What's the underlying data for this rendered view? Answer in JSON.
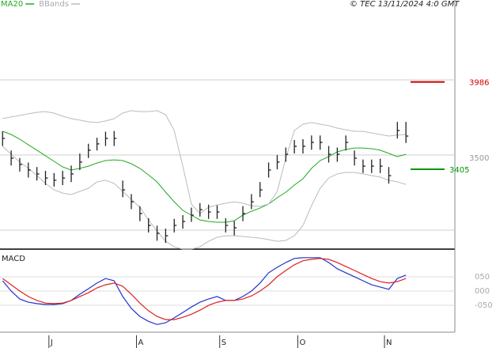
{
  "header": {
    "copyright": "© TEC 13/11/2024 4:0 GMT"
  },
  "chart_data": [
    {
      "type": "ohlc",
      "xlim": [
        -0.3,
        52.7
      ],
      "xticks": [
        {
          "value": 5.4,
          "label": "J"
        },
        {
          "value": 15.6,
          "label": "A"
        },
        {
          "value": 25.3,
          "label": "S"
        },
        {
          "value": 34.4,
          "label": "O"
        },
        {
          "value": 44.5,
          "label": "N"
        }
      ],
      "ylim": [
        2874,
        4531
      ],
      "yticks": [
        3500
      ],
      "gridlines": [
        3000,
        3500,
        4000
      ],
      "color": "#222222",
      "high": [
        3658,
        3530,
        3480,
        3450,
        3420,
        3395,
        3380,
        3395,
        3430,
        3510,
        3575,
        3615,
        3655,
        3660,
        3330,
        3240,
        3160,
        3080,
        3030,
        3010,
        3075,
        3100,
        3150,
        3180,
        3170,
        3165,
        3080,
        3060,
        3160,
        3240,
        3320,
        3450,
        3500,
        3550,
        3600,
        3605,
        3630,
        3630,
        3560,
        3550,
        3630,
        3530,
        3470,
        3470,
        3475,
        3420,
        3720,
        3720
      ],
      "low": [
        3560,
        3430,
        3390,
        3350,
        3330,
        3300,
        3290,
        3300,
        3320,
        3400,
        3480,
        3530,
        3560,
        3560,
        3220,
        3140,
        3060,
        2985,
        2930,
        2915,
        2985,
        3010,
        3055,
        3090,
        3075,
        3075,
        2985,
        2965,
        3060,
        3140,
        3220,
        3350,
        3405,
        3455,
        3510,
        3510,
        3535,
        3535,
        3450,
        3455,
        3530,
        3430,
        3380,
        3380,
        3380,
        3310,
        3610,
        3580
      ],
      "close": [
        3611,
        3479,
        3437,
        3400,
        3374,
        3347,
        3332,
        3347,
        3374,
        3453,
        3532,
        3574,
        3611,
        3611,
        3268,
        3189,
        3111,
        3032,
        2979,
        2963,
        3032,
        3058,
        3100,
        3137,
        3121,
        3121,
        3032,
        3016,
        3111,
        3189,
        3268,
        3400,
        3453,
        3505,
        3558,
        3558,
        3584,
        3584,
        3505,
        3505,
        3584,
        3479,
        3426,
        3426,
        3426,
        3363,
        3663,
        3626
      ],
      "series": [
        {
          "name": "MA20",
          "color": "#22aa22",
          "values": [
            3658,
            3637,
            3605,
            3568,
            3532,
            3495,
            3458,
            3421,
            3400,
            3411,
            3426,
            3447,
            3463,
            3468,
            3463,
            3442,
            3411,
            3368,
            3321,
            3253,
            3189,
            3132,
            3100,
            3068,
            3058,
            3053,
            3053,
            3063,
            3100,
            3126,
            3147,
            3174,
            3216,
            3253,
            3300,
            3342,
            3411,
            3463,
            3489,
            3521,
            3537,
            3547,
            3547,
            3542,
            3532,
            3511,
            3489,
            3505
          ]
        },
        {
          "name": "BBands",
          "color": "#bbbbbb",
          "values": [
            3742,
            3753,
            3763,
            3774,
            3784,
            3789,
            3779,
            3758,
            3742,
            3732,
            3721,
            3716,
            3726,
            3742,
            3779,
            3795,
            3789,
            3789,
            3795,
            3768,
            3663,
            3426,
            3174,
            3111,
            3153,
            3168,
            3179,
            3189,
            3179,
            3163,
            3158,
            3174,
            3258,
            3479,
            3663,
            3705,
            3716,
            3705,
            3695,
            3679,
            3668,
            3658,
            3658,
            3647,
            3637,
            3626,
            3632,
            3637
          ]
        },
        {
          "color": "#bbbbbb",
          "values": [
            3558,
            3505,
            3453,
            3411,
            3363,
            3311,
            3268,
            3247,
            3237,
            3258,
            3279,
            3321,
            3332,
            3311,
            3258,
            3205,
            3153,
            3068,
            2995,
            2926,
            2889,
            2874,
            2874,
            2889,
            2926,
            2953,
            2963,
            2963,
            2958,
            2953,
            2947,
            2937,
            2926,
            2932,
            2963,
            3032,
            3163,
            3279,
            3347,
            3374,
            3384,
            3384,
            3374,
            3363,
            3353,
            3332,
            3321,
            3305
          ]
        }
      ],
      "levels": [
        {
          "value": 3986,
          "color": "#cc0000"
        },
        {
          "value": 3405,
          "color": "#009900"
        }
      ]
    },
    {
      "type": "line",
      "title": "MACD",
      "xlim": [
        -0.3,
        52.7
      ],
      "ylim": [
        -144,
        144
      ],
      "yticks": [
        {
          "value": 50,
          "label": "050"
        },
        {
          "value": 0,
          "label": "000"
        },
        {
          "value": -50,
          "label": "-050"
        }
      ],
      "series": [
        {
          "color": "#2233cc",
          "values": [
            36,
            0,
            -28,
            -39,
            -44,
            -47,
            -47,
            -44,
            -33,
            -11,
            8,
            28,
            44,
            36,
            -19,
            -61,
            -89,
            -106,
            -117,
            -111,
            -94,
            -75,
            -56,
            -39,
            -28,
            -19,
            -33,
            -33,
            -19,
            0,
            28,
            64,
            83,
            100,
            114,
            117,
            117,
            117,
            100,
            78,
            64,
            50,
            36,
            22,
            14,
            6,
            44,
            56
          ]
        },
        {
          "color": "#dd2222",
          "values": [
            44,
            22,
            0,
            -19,
            -33,
            -42,
            -44,
            -42,
            -33,
            -19,
            -6,
            11,
            22,
            28,
            17,
            -11,
            -42,
            -69,
            -89,
            -100,
            -100,
            -92,
            -81,
            -67,
            -50,
            -39,
            -33,
            -33,
            -28,
            -17,
            0,
            22,
            50,
            72,
            92,
            106,
            111,
            114,
            111,
            100,
            86,
            72,
            58,
            44,
            33,
            28,
            33,
            44
          ]
        }
      ]
    }
  ]
}
